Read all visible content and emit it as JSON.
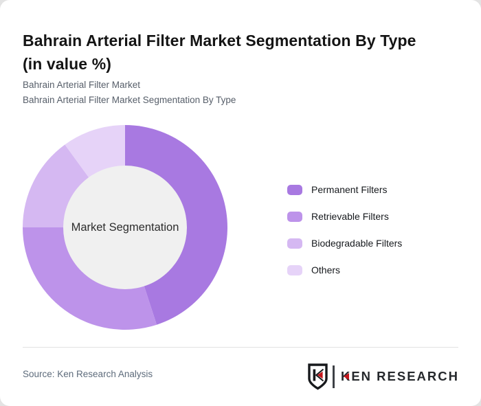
{
  "header": {
    "title_line1": "Bahrain Arterial Filter Market Segmentation By Type",
    "title_line2": "(in value %)",
    "subtitle_line1": "Bahrain Arterial Filter Market",
    "subtitle_line2": "Bahrain Arterial Filter Market Segmentation By Type"
  },
  "chart_data": {
    "type": "pie",
    "variant": "donut",
    "title": "Bahrain Arterial Filter Market Segmentation By Type (in value %)",
    "center_label": "Market Segmentation",
    "categories": [
      "Permanent Filters",
      "Retrievable Filters",
      "Biodegradable Filters",
      "Others"
    ],
    "values": [
      45,
      30,
      15,
      10
    ],
    "unit": "% of market value (estimated from arc angles; no data labels shown)",
    "colors": [
      "#a879e1",
      "#bd93ea",
      "#d5b8f2",
      "#e6d3f8"
    ],
    "start_angle_deg": 0,
    "direction": "clockwise",
    "hole_color": "#f0f0f0",
    "legend_position": "right"
  },
  "footer": {
    "source": "Source: Ken Research Analysis",
    "logo_text": "KEN RESEARCH",
    "logo_letter": "K",
    "logo_accent_color": "#c4161c",
    "logo_outline_color": "#17191c"
  }
}
